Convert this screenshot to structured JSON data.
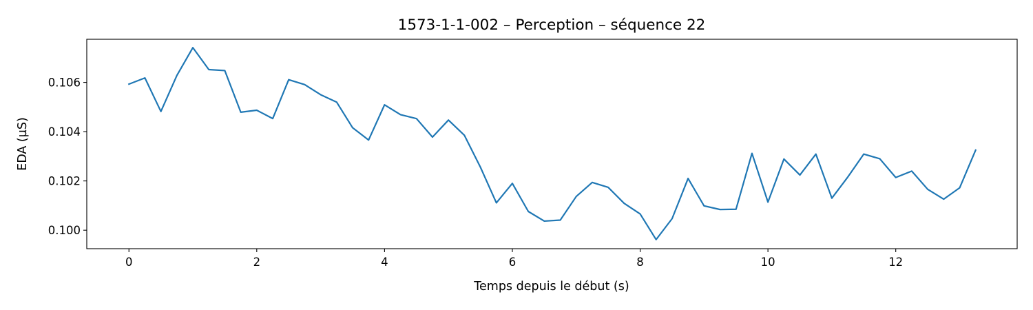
{
  "chart_data": {
    "type": "line",
    "title": "1573-1-1-002 – Perception – séquence 22",
    "xlabel": "Temps depuis le début (s)",
    "ylabel": "EDA (µS)",
    "xlim": [
      -0.66,
      13.9
    ],
    "ylim": [
      0.09925,
      0.10775
    ],
    "xticks": [
      0,
      2,
      4,
      6,
      8,
      10,
      12
    ],
    "xtick_labels": [
      "0",
      "2",
      "4",
      "6",
      "8",
      "10",
      "12"
    ],
    "yticks": [
      0.1,
      0.102,
      0.104,
      0.106
    ],
    "ytick_labels": [
      "0.100",
      "0.102",
      "0.104",
      "0.106"
    ],
    "grid": false,
    "legend": "none",
    "line_color": "#1f77b4",
    "series": [
      {
        "x": [
          0,
          0.25,
          0.5,
          0.75,
          1.0,
          1.25,
          1.5,
          1.75,
          2.0,
          2.25,
          2.5,
          2.75,
          3.0,
          3.25,
          3.5,
          3.75,
          4.0,
          4.25,
          4.5,
          4.75,
          5.0,
          5.25,
          5.5,
          5.75,
          6.0,
          6.25,
          6.5,
          6.75,
          7.0,
          7.25,
          7.5,
          7.75,
          8.0,
          8.25,
          8.5,
          8.75,
          9.0,
          9.25,
          9.5,
          9.75,
          10.0,
          10.25,
          10.5,
          10.75,
          11.0,
          11.25,
          11.5,
          11.75,
          12.0,
          12.25,
          12.5,
          12.75,
          13.0,
          13.25
        ],
        "y": [
          0.10593,
          0.10618,
          0.10482,
          0.10628,
          0.10741,
          0.10652,
          0.10648,
          0.10479,
          0.10487,
          0.10453,
          0.10611,
          0.10591,
          0.1055,
          0.1052,
          0.10416,
          0.10366,
          0.10509,
          0.10469,
          0.10453,
          0.10378,
          0.10447,
          0.10385,
          0.10256,
          0.10111,
          0.1019,
          0.10076,
          0.10037,
          0.10041,
          0.10137,
          0.10194,
          0.10174,
          0.10109,
          0.10066,
          0.09962,
          0.10047,
          0.1021,
          0.10099,
          0.10084,
          0.10085,
          0.10312,
          0.10114,
          0.10289,
          0.10224,
          0.10309,
          0.1013,
          0.10216,
          0.10309,
          0.1029,
          0.10214,
          0.1024,
          0.10166,
          0.10126,
          0.10172,
          0.10325
        ]
      }
    ]
  }
}
